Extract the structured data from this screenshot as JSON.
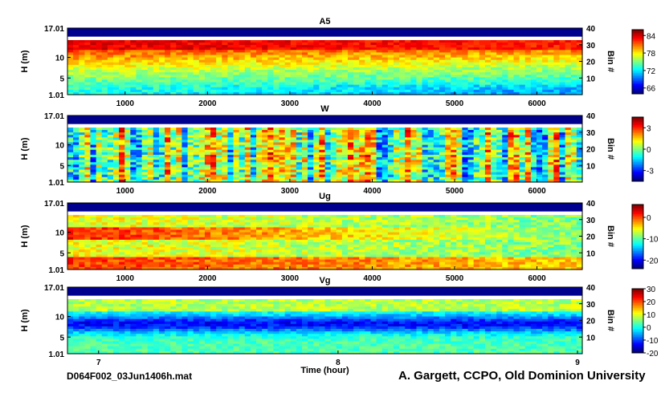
{
  "footer": {
    "filename": "D064F002_03Jun1406h.mat",
    "credit": "A. Gargett, CCPO, Old Dominion University"
  },
  "chart_data": [
    {
      "type": "heatmap",
      "title": "A5",
      "ylabel": "H (m)",
      "ylabel_right": "Bin #",
      "xlabel": "",
      "ylim": [
        1.01,
        17.01
      ],
      "yticks": [
        "17.01",
        "10",
        "5",
        "1.01"
      ],
      "right_ticks": [
        "40",
        "30",
        "20",
        "10"
      ],
      "xlim": [
        300,
        6550
      ],
      "xticks": [
        "1000",
        "2000",
        "3000",
        "4000",
        "5000",
        "6000"
      ],
      "colorbar": {
        "min": 64,
        "max": 86,
        "ticks": [
          "84",
          "78",
          "72",
          "66"
        ]
      },
      "field": "intensity: highest near top (~82) decreasing with depth to ~70, lowest near bottom right (~66)"
    },
    {
      "type": "heatmap",
      "title": "W",
      "ylabel": "H (m)",
      "ylabel_right": "Bin #",
      "xlabel": "",
      "ylim": [
        1.01,
        17.01
      ],
      "yticks": [
        "17.01",
        "10",
        "5",
        "1.01"
      ],
      "right_ticks": [
        "40",
        "30",
        "20",
        "10"
      ],
      "xlim": [
        300,
        6550
      ],
      "xticks": [
        "1000",
        "2000",
        "3000",
        "4000",
        "5000",
        "6000"
      ],
      "colorbar": {
        "min": -4.5,
        "max": 4.5,
        "ticks": [
          "3",
          "0",
          "-3"
        ]
      },
      "field": "noisy near-zero velocity with vertical streaks of positive and negative values"
    },
    {
      "type": "heatmap",
      "title": "Ug",
      "ylabel": "H (m)",
      "ylabel_right": "Bin #",
      "xlabel": "",
      "ylim": [
        1.01,
        17.01
      ],
      "yticks": [
        "17.01",
        "10",
        "5",
        "1.01"
      ],
      "right_ticks": [
        "40",
        "30",
        "20",
        "10"
      ],
      "xlim": [
        300,
        6550
      ],
      "xticks": [
        "1000",
        "2000",
        "3000",
        "4000",
        "5000",
        "6000"
      ],
      "colorbar": {
        "min": -24,
        "max": 6,
        "ticks": [
          "0",
          "-10",
          "-20"
        ]
      },
      "field": "strongly positive (red) near bed and upper layer early, decreasing toward ~-12 mid-depth later"
    },
    {
      "type": "heatmap",
      "title": "Vg",
      "ylabel": "H (m)",
      "ylabel_right": "Bin #",
      "xlabel": "Time (hour)",
      "ylim": [
        1.01,
        17.01
      ],
      "yticks": [
        "17.01",
        "10",
        "5",
        "1.01"
      ],
      "right_ticks": [
        "40",
        "30",
        "20",
        "10"
      ],
      "xlim": [
        6.87,
        9.02
      ],
      "xticks": [
        "7",
        "8",
        "9"
      ],
      "colorbar": {
        "min": -20,
        "max": 30,
        "ticks": [
          "30",
          "20",
          "10",
          "0",
          "-10",
          "-20"
        ]
      },
      "field": "negative core (~-18) centered near 8 m height, near zero elsewhere"
    }
  ]
}
